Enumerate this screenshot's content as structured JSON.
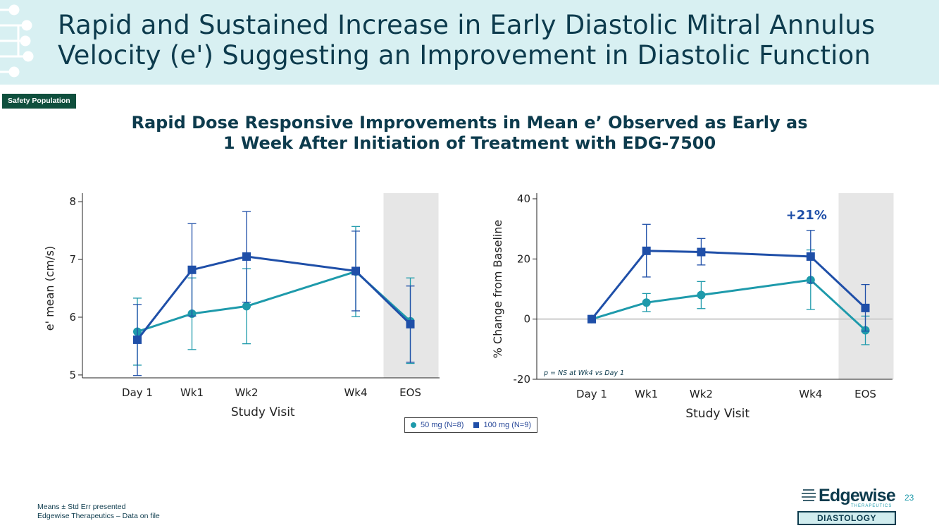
{
  "header": {
    "title_line1": "Rapid and Sustained Increase in Early Diastolic Mitral Annulus",
    "title_line2": "Velocity (e') Suggesting an Improvement in Diastolic Function"
  },
  "badge": "Safety Population",
  "subtitle_line1": "Rapid Dose Responsive Improvements in Mean e’ Observed as Early as",
  "subtitle_line2": "1 Week After Initiation of Treatment with EDG-7500",
  "legend": {
    "series1": "50 mg (N=8)",
    "series2": "100 mg (N=9)"
  },
  "footnotes": {
    "line1": "Means ± Std Err presented",
    "line2": "Edgewise Therapeutics – Data on file"
  },
  "logo": {
    "word": "Edgewise",
    "sub": "THERAPEUTICS"
  },
  "page_number": "23",
  "section_tag": "DIASTOLOGY",
  "colors": {
    "series1": "#1e9aab",
    "series2": "#1f4fa8",
    "eos_shade": "#e6e6e6"
  },
  "chart_data": [
    {
      "type": "line",
      "categories": [
        "Day 1",
        "Wk1",
        "Wk2",
        "Wk4",
        "EOS"
      ],
      "x": [
        0,
        1,
        2,
        4,
        5
      ],
      "xlabel": "Study Visit",
      "ylabel": "e' mean (cm/s)",
      "ylim": [
        4.95,
        8.05
      ],
      "yticks": [
        5,
        6,
        7,
        8
      ],
      "shaded_category": "EOS",
      "series": [
        {
          "name": "50 mg (N=8)",
          "marker": "circle",
          "values": [
            5.75,
            6.06,
            6.19,
            6.79,
            5.93
          ],
          "err_low": [
            5.17,
            5.44,
            5.54,
            6.01,
            5.2
          ],
          "err_high": [
            6.33,
            6.68,
            6.84,
            7.57,
            6.68
          ]
        },
        {
          "name": "100 mg (N=9)",
          "marker": "square",
          "values": [
            5.61,
            6.82,
            7.05,
            6.8,
            5.88
          ],
          "err_low": [
            4.99,
            6.02,
            6.26,
            6.11,
            5.22
          ],
          "err_high": [
            6.22,
            7.62,
            7.83,
            7.49,
            6.54
          ]
        }
      ]
    },
    {
      "type": "line",
      "categories": [
        "Day 1",
        "Wk1",
        "Wk2",
        "Wk4",
        "EOS"
      ],
      "x": [
        0,
        1,
        2,
        4,
        5
      ],
      "xlabel": "Study Visit",
      "ylabel": "% Change from Baseline",
      "ylim": [
        -20,
        40
      ],
      "yticks": [
        -20,
        0,
        20,
        40
      ],
      "zero_line": true,
      "shaded_category": "EOS",
      "annotation": "+21%",
      "annotation_category": "Wk4",
      "note": "p = NS at Wk4 vs Day 1",
      "series": [
        {
          "name": "50 mg (N=8)",
          "marker": "circle",
          "values": [
            0,
            5.5,
            8.0,
            13.0,
            -3.7
          ],
          "err_low": [
            0,
            2.5,
            3.5,
            3.2,
            -8.5
          ],
          "err_high": [
            0,
            8.5,
            12.5,
            23.0,
            1.0
          ]
        },
        {
          "name": "100 mg (N=9)",
          "marker": "square",
          "values": [
            0,
            22.7,
            22.3,
            20.8,
            3.7
          ],
          "err_low": [
            0,
            14.0,
            18.0,
            12.0,
            -4.0
          ],
          "err_high": [
            0,
            31.5,
            26.8,
            29.5,
            11.5
          ]
        }
      ]
    }
  ]
}
